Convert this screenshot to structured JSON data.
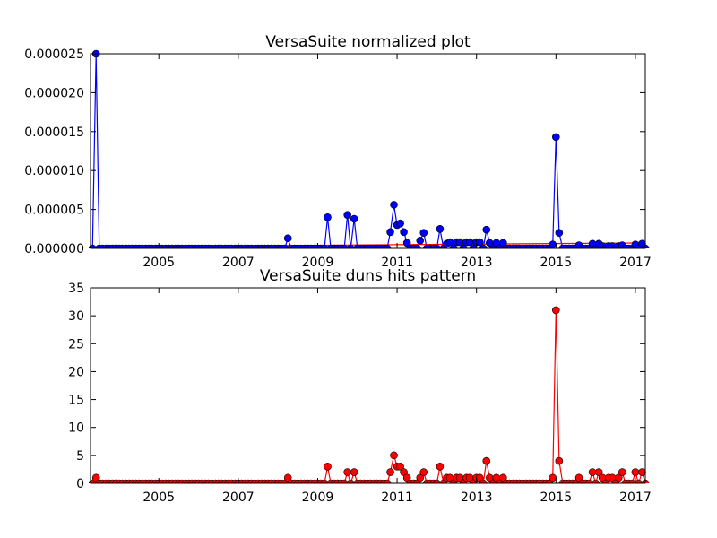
{
  "chart_data": [
    {
      "type": "line",
      "title": "VersaSuite normalized plot",
      "x": [
        2003.33,
        2003.42,
        2003.5,
        2003.58,
        2003.67,
        2003.75,
        2003.83,
        2003.92,
        2004,
        2004.08,
        2004.17,
        2004.25,
        2004.33,
        2004.42,
        2004.5,
        2004.58,
        2004.67,
        2004.75,
        2004.83,
        2004.92,
        2005,
        2005.08,
        2005.17,
        2005.25,
        2005.33,
        2005.42,
        2005.5,
        2005.58,
        2005.67,
        2005.75,
        2005.83,
        2005.92,
        2006,
        2006.08,
        2006.17,
        2006.25,
        2006.33,
        2006.42,
        2006.5,
        2006.58,
        2006.67,
        2006.75,
        2006.83,
        2006.92,
        2007,
        2007.08,
        2007.17,
        2007.25,
        2007.33,
        2007.42,
        2007.5,
        2007.58,
        2007.67,
        2007.75,
        2007.83,
        2007.92,
        2008,
        2008.08,
        2008.17,
        2008.25,
        2008.33,
        2008.42,
        2008.5,
        2008.58,
        2008.67,
        2008.75,
        2008.83,
        2008.92,
        2009,
        2009.08,
        2009.17,
        2009.25,
        2009.33,
        2009.42,
        2009.5,
        2009.58,
        2009.67,
        2009.75,
        2009.83,
        2009.92,
        2010,
        2010.08,
        2010.17,
        2010.25,
        2010.33,
        2010.42,
        2010.5,
        2010.58,
        2010.67,
        2010.75,
        2010.83,
        2010.92,
        2011,
        2011.08,
        2011.17,
        2011.25,
        2011.33,
        2011.42,
        2011.5,
        2011.58,
        2011.67,
        2011.75,
        2011.83,
        2011.92,
        2012,
        2012.08,
        2012.17,
        2012.25,
        2012.33,
        2012.42,
        2012.5,
        2012.58,
        2012.67,
        2012.75,
        2012.83,
        2012.92,
        2013,
        2013.08,
        2013.17,
        2013.25,
        2013.33,
        2013.42,
        2013.5,
        2013.58,
        2013.67,
        2013.75,
        2013.83,
        2013.92,
        2014,
        2014.08,
        2014.17,
        2014.25,
        2014.33,
        2014.42,
        2014.5,
        2014.58,
        2014.67,
        2014.75,
        2014.83,
        2014.92,
        2015,
        2015.08,
        2015.17,
        2015.25,
        2015.33,
        2015.42,
        2015.5,
        2015.58,
        2015.67,
        2015.75,
        2015.83,
        2015.92,
        2016,
        2016.08,
        2016.17,
        2016.25,
        2016.33,
        2016.42,
        2016.5,
        2016.58,
        2016.67,
        2016.75,
        2016.83,
        2016.92,
        2017,
        2017.08,
        2017.17,
        2017.25
      ],
      "xlim": [
        2003.28,
        2017.25
      ],
      "xticks": [
        2005,
        2007,
        2009,
        2011,
        2013,
        2015,
        2017
      ],
      "ylim": [
        0,
        2.5e-05
      ],
      "yticks": [
        {
          "value": 0,
          "label": "0.000000"
        },
        {
          "value": 5e-06,
          "label": "0.000005"
        },
        {
          "value": 1e-05,
          "label": "0.000010"
        },
        {
          "value": 1.5e-05,
          "label": "0.000015"
        },
        {
          "value": 2e-05,
          "label": "0.000020"
        },
        {
          "value": 2.5e-05,
          "label": "0.000025"
        }
      ],
      "series": [
        {
          "color": "#0000ff",
          "marker": true,
          "values": [
            0,
            2.5e-05,
            0,
            0,
            0,
            0,
            0,
            0,
            0,
            0,
            0,
            0,
            0,
            0,
            0,
            0,
            0,
            0,
            0,
            0,
            0,
            0,
            0,
            0,
            0,
            0,
            0,
            0,
            0,
            0,
            0,
            0,
            0,
            0,
            0,
            0,
            0,
            0,
            0,
            0,
            0,
            0,
            0,
            0,
            0,
            0,
            0,
            0,
            0,
            0,
            0,
            0,
            0,
            0,
            0,
            0,
            0,
            0,
            0,
            1.3e-06,
            0,
            0,
            0,
            0,
            0,
            0,
            0,
            0,
            0,
            0,
            0,
            4e-06,
            0,
            0,
            0,
            0,
            0,
            4.3e-06,
            0,
            3.8e-06,
            0,
            0,
            0,
            0,
            0,
            0,
            0,
            0,
            0,
            0,
            2.1e-06,
            5.6e-06,
            3e-06,
            3.2e-06,
            2.1e-06,
            7e-07,
            0,
            0,
            0,
            1e-06,
            2e-06,
            0,
            0,
            0,
            0,
            2.5e-06,
            0,
            6e-07,
            8e-07,
            0,
            8e-07,
            8e-07,
            0,
            8e-07,
            8e-07,
            0,
            8e-07,
            8e-07,
            0,
            2.4e-06,
            7e-07,
            0,
            7e-07,
            0,
            7e-07,
            0,
            0,
            0,
            0,
            0,
            0,
            0,
            0,
            0,
            0,
            0,
            0,
            0,
            0,
            5e-07,
            1.43e-05,
            2e-06,
            0,
            0,
            0,
            0,
            0,
            4e-07,
            0,
            0,
            0,
            6e-07,
            0,
            6e-07,
            3e-07,
            0,
            3e-07,
            3e-07,
            0,
            3e-07,
            4e-07,
            0,
            0,
            0,
            5e-07,
            0,
            6e-07,
            0
          ]
        },
        {
          "color": "#ff0000",
          "marker": false,
          "x": [
            2003.33,
            2017.25
          ],
          "values": [
            2e-07,
            7e-07
          ]
        }
      ]
    },
    {
      "type": "line",
      "title": "VersaSuite duns hits pattern",
      "x": [
        2003.33,
        2003.42,
        2003.5,
        2003.58,
        2003.67,
        2003.75,
        2003.83,
        2003.92,
        2004,
        2004.08,
        2004.17,
        2004.25,
        2004.33,
        2004.42,
        2004.5,
        2004.58,
        2004.67,
        2004.75,
        2004.83,
        2004.92,
        2005,
        2005.08,
        2005.17,
        2005.25,
        2005.33,
        2005.42,
        2005.5,
        2005.58,
        2005.67,
        2005.75,
        2005.83,
        2005.92,
        2006,
        2006.08,
        2006.17,
        2006.25,
        2006.33,
        2006.42,
        2006.5,
        2006.58,
        2006.67,
        2006.75,
        2006.83,
        2006.92,
        2007,
        2007.08,
        2007.17,
        2007.25,
        2007.33,
        2007.42,
        2007.5,
        2007.58,
        2007.67,
        2007.75,
        2007.83,
        2007.92,
        2008,
        2008.08,
        2008.17,
        2008.25,
        2008.33,
        2008.42,
        2008.5,
        2008.58,
        2008.67,
        2008.75,
        2008.83,
        2008.92,
        2009,
        2009.08,
        2009.17,
        2009.25,
        2009.33,
        2009.42,
        2009.5,
        2009.58,
        2009.67,
        2009.75,
        2009.83,
        2009.92,
        2010,
        2010.08,
        2010.17,
        2010.25,
        2010.33,
        2010.42,
        2010.5,
        2010.58,
        2010.67,
        2010.75,
        2010.83,
        2010.92,
        2011,
        2011.08,
        2011.17,
        2011.25,
        2011.33,
        2011.42,
        2011.5,
        2011.58,
        2011.67,
        2011.75,
        2011.83,
        2011.92,
        2012,
        2012.08,
        2012.17,
        2012.25,
        2012.33,
        2012.42,
        2012.5,
        2012.58,
        2012.67,
        2012.75,
        2012.83,
        2012.92,
        2013,
        2013.08,
        2013.17,
        2013.25,
        2013.33,
        2013.42,
        2013.5,
        2013.58,
        2013.67,
        2013.75,
        2013.83,
        2013.92,
        2014,
        2014.08,
        2014.17,
        2014.25,
        2014.33,
        2014.42,
        2014.5,
        2014.58,
        2014.67,
        2014.75,
        2014.83,
        2014.92,
        2015,
        2015.08,
        2015.17,
        2015.25,
        2015.33,
        2015.42,
        2015.5,
        2015.58,
        2015.67,
        2015.75,
        2015.83,
        2015.92,
        2016,
        2016.08,
        2016.17,
        2016.25,
        2016.33,
        2016.42,
        2016.5,
        2016.58,
        2016.67,
        2016.75,
        2016.83,
        2016.92,
        2017,
        2017.08,
        2017.17,
        2017.25
      ],
      "xlim": [
        2003.28,
        2017.25
      ],
      "xticks": [
        2005,
        2007,
        2009,
        2011,
        2013,
        2015,
        2017
      ],
      "ylim": [
        0,
        35
      ],
      "yticks": [
        0,
        5,
        10,
        15,
        20,
        25,
        30,
        35
      ],
      "series": [
        {
          "color": "#ff0000",
          "marker": true,
          "values": [
            0,
            1,
            0,
            0,
            0,
            0,
            0,
            0,
            0,
            0,
            0,
            0,
            0,
            0,
            0,
            0,
            0,
            0,
            0,
            0,
            0,
            0,
            0,
            0,
            0,
            0,
            0,
            0,
            0,
            0,
            0,
            0,
            0,
            0,
            0,
            0,
            0,
            0,
            0,
            0,
            0,
            0,
            0,
            0,
            0,
            0,
            0,
            0,
            0,
            0,
            0,
            0,
            0,
            0,
            0,
            0,
            0,
            0,
            0,
            1,
            0,
            0,
            0,
            0,
            0,
            0,
            0,
            0,
            0,
            0,
            0,
            3,
            0,
            0,
            0,
            0,
            0,
            2,
            0,
            2,
            0,
            0,
            0,
            0,
            0,
            0,
            0,
            0,
            0,
            0,
            2,
            5,
            3,
            3,
            2,
            1,
            0,
            0,
            0,
            1,
            2,
            0,
            0,
            0,
            0,
            3,
            0,
            1,
            1,
            0,
            1,
            1,
            0,
            1,
            1,
            0,
            1,
            1,
            0,
            4,
            1,
            0,
            1,
            0,
            1,
            0,
            0,
            0,
            0,
            0,
            0,
            0,
            0,
            0,
            0,
            0,
            0,
            0,
            0,
            1,
            31,
            4,
            0,
            0,
            0,
            0,
            0,
            1,
            0,
            0,
            0,
            2,
            0,
            2,
            1,
            0,
            1,
            1,
            0,
            1,
            2,
            0,
            0,
            0,
            2,
            0,
            2,
            0
          ]
        }
      ]
    }
  ]
}
